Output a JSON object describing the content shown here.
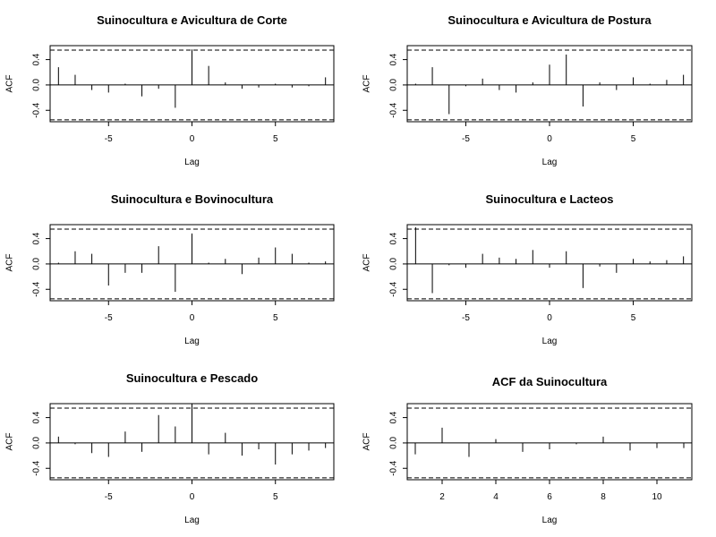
{
  "chart_data": [
    {
      "type": "bar",
      "title": "Suinocultura e Avicultura de Corte",
      "xlabel": "Lag",
      "ylabel": "ACF",
      "x": [
        -8,
        -7,
        -6,
        -5,
        -4,
        -3,
        -2,
        -1,
        0,
        1,
        2,
        3,
        4,
        5,
        6,
        7,
        8
      ],
      "values": [
        0.28,
        0.16,
        -0.08,
        -0.12,
        0.02,
        -0.18,
        -0.06,
        -0.36,
        0.56,
        0.3,
        0.04,
        -0.06,
        -0.04,
        0.02,
        -0.04,
        -0.02,
        0.12
      ],
      "xlim": [
        -8.5,
        8.5
      ],
      "ylim": [
        -0.58,
        0.62
      ],
      "xticks": [
        "-5",
        "0",
        "5"
      ],
      "yticks": [
        "-0.4",
        "0.0",
        "0.4"
      ],
      "ci": 0.55
    },
    {
      "type": "bar",
      "title": "Suinocultura e Avicultura de Postura",
      "xlabel": "Lag",
      "ylabel": "ACF",
      "x": [
        -8,
        -7,
        -6,
        -5,
        -4,
        -3,
        -2,
        -1,
        0,
        1,
        2,
        3,
        4,
        5,
        6,
        7,
        8
      ],
      "values": [
        0.02,
        0.28,
        -0.46,
        -0.02,
        0.1,
        -0.08,
        -0.12,
        0.04,
        0.32,
        0.48,
        -0.34,
        0.04,
        -0.08,
        0.12,
        0.02,
        0.08,
        0.16
      ],
      "xlim": [
        -8.5,
        8.5
      ],
      "ylim": [
        -0.58,
        0.62
      ],
      "xticks": [
        "-5",
        "0",
        "5"
      ],
      "yticks": [
        "-0.4",
        "0.0",
        "0.4"
      ],
      "ci": 0.55
    },
    {
      "type": "bar",
      "title": "Suinocultura e Bovinocultura",
      "xlabel": "Lag",
      "ylabel": "ACF",
      "x": [
        -8,
        -7,
        -6,
        -5,
        -4,
        -3,
        -2,
        -1,
        0,
        1,
        2,
        3,
        4,
        5,
        6,
        7,
        8
      ],
      "values": [
        0.02,
        0.2,
        0.16,
        -0.34,
        -0.14,
        -0.14,
        0.28,
        -0.44,
        0.48,
        0.02,
        0.08,
        -0.16,
        0.1,
        0.26,
        0.16,
        0.02,
        0.04
      ],
      "xlim": [
        -8.5,
        8.5
      ],
      "ylim": [
        -0.58,
        0.62
      ],
      "xticks": [
        "-5",
        "0",
        "5"
      ],
      "yticks": [
        "-0.4",
        "0.0",
        "0.4"
      ],
      "ci": 0.55
    },
    {
      "type": "bar",
      "title": "Suinocultura e Lacteos",
      "xlabel": "Lag",
      "ylabel": "ACF",
      "x": [
        -8,
        -7,
        -6,
        -5,
        -4,
        -3,
        -2,
        -1,
        0,
        1,
        2,
        3,
        4,
        5,
        6,
        7,
        8
      ],
      "values": [
        0.58,
        -0.46,
        -0.02,
        -0.06,
        0.16,
        0.1,
        0.08,
        0.22,
        -0.06,
        0.2,
        -0.38,
        -0.04,
        -0.14,
        0.08,
        0.04,
        0.06,
        0.12
      ],
      "xlim": [
        -8.5,
        8.5
      ],
      "ylim": [
        -0.58,
        0.62
      ],
      "xticks": [
        "-5",
        "0",
        "5"
      ],
      "yticks": [
        "-0.4",
        "0.0",
        "0.4"
      ],
      "ci": 0.55
    },
    {
      "type": "bar",
      "title": "Suinocultura e Pescado",
      "xlabel": "Lag",
      "ylabel": "ACF",
      "x": [
        -8,
        -7,
        -6,
        -5,
        -4,
        -3,
        -2,
        -1,
        0,
        1,
        2,
        3,
        4,
        5,
        6,
        7,
        8
      ],
      "values": [
        0.1,
        -0.02,
        -0.16,
        -0.22,
        0.18,
        -0.14,
        0.44,
        0.26,
        0.62,
        -0.18,
        0.16,
        -0.2,
        -0.1,
        -0.34,
        -0.18,
        -0.12,
        -0.08
      ],
      "xlim": [
        -8.5,
        8.5
      ],
      "ylim": [
        -0.58,
        0.62
      ],
      "xticks": [
        "-5",
        "0",
        "5"
      ],
      "yticks": [
        "-0.4",
        "0.0",
        "0.4"
      ],
      "ci": 0.55
    },
    {
      "type": "bar",
      "title": "ACF da Suinocultura",
      "xlabel": "Lag",
      "ylabel": "ACF",
      "x": [
        1,
        2,
        3,
        4,
        5,
        6,
        7,
        8,
        9,
        10,
        11
      ],
      "values": [
        -0.18,
        0.24,
        -0.22,
        0.06,
        -0.14,
        -0.1,
        -0.02,
        0.1,
        -0.12,
        -0.08,
        -0.08
      ],
      "xlim": [
        0.7,
        11.3
      ],
      "ylim": [
        -0.58,
        0.62
      ],
      "xticks": [
        "2",
        "4",
        "6",
        "8",
        "10"
      ],
      "yticks": [
        "-0.4",
        "0.0",
        "0.4"
      ],
      "ci": 0.55
    }
  ]
}
